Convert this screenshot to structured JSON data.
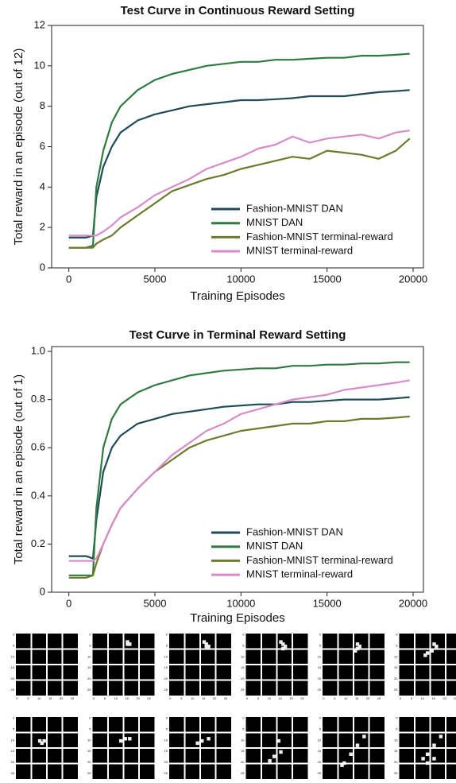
{
  "chart_data": [
    {
      "type": "line",
      "title": "Test Curve in Continuous Reward Setting",
      "xlabel": "Training Episodes",
      "ylabel": "Total reward in an episode (out of 12)",
      "x": [
        0,
        1000,
        1400,
        1600,
        2000,
        2500,
        3000,
        4000,
        5000,
        6000,
        7000,
        8000,
        9000,
        10000,
        11000,
        12000,
        13000,
        14000,
        15000,
        16000,
        17000,
        18000,
        19000,
        19800
      ],
      "series": [
        {
          "name": "Fashion-MNIST DAN",
          "color": "#1f4a57",
          "values": [
            1.5,
            1.5,
            1.6,
            3.5,
            5,
            6,
            6.7,
            7.3,
            7.6,
            7.8,
            8.0,
            8.1,
            8.2,
            8.3,
            8.3,
            8.35,
            8.4,
            8.5,
            8.5,
            8.5,
            8.6,
            8.7,
            8.75,
            8.8
          ]
        },
        {
          "name": "MNIST DAN",
          "color": "#2f7a40",
          "values": [
            1.0,
            1.0,
            1.1,
            4,
            5.8,
            7.2,
            8.0,
            8.8,
            9.3,
            9.6,
            9.8,
            10.0,
            10.1,
            10.2,
            10.2,
            10.3,
            10.3,
            10.35,
            10.4,
            10.4,
            10.5,
            10.5,
            10.55,
            10.6
          ]
        },
        {
          "name": "Fashion-MNIST terminal-reward",
          "color": "#6e7a2c",
          "values": [
            1.0,
            1.0,
            1.0,
            1.2,
            1.4,
            1.6,
            2.0,
            2.6,
            3.2,
            3.8,
            4.1,
            4.4,
            4.6,
            4.9,
            5.1,
            5.3,
            5.5,
            5.4,
            5.8,
            5.7,
            5.6,
            5.4,
            5.8,
            6.4
          ]
        },
        {
          "name": "MNIST terminal-reward",
          "color": "#d98bc9",
          "values": [
            1.6,
            1.6,
            1.6,
            1.6,
            1.8,
            2.1,
            2.5,
            3.0,
            3.6,
            4.0,
            4.4,
            4.9,
            5.2,
            5.5,
            5.9,
            6.1,
            6.5,
            6.2,
            6.4,
            6.5,
            6.6,
            6.4,
            6.7,
            6.8
          ]
        }
      ],
      "xlim": [
        -1000,
        20600
      ],
      "xticks": [
        0,
        5000,
        10000,
        15000,
        20000
      ],
      "ylim": [
        0,
        12
      ],
      "yticks": [
        0,
        2,
        4,
        6,
        8,
        10,
        12
      ],
      "legend": "lower right"
    },
    {
      "type": "line",
      "title": "Test Curve in Terminal Reward Setting",
      "xlabel": "Training Episodes",
      "ylabel": "Total reward in an episode (out of 1)",
      "x": [
        0,
        1000,
        1400,
        1600,
        2000,
        2500,
        3000,
        4000,
        5000,
        6000,
        7000,
        8000,
        9000,
        10000,
        11000,
        12000,
        13000,
        14000,
        15000,
        16000,
        17000,
        18000,
        19000,
        19800
      ],
      "series": [
        {
          "name": "Fashion-MNIST DAN",
          "color": "#1f4a57",
          "values": [
            0.15,
            0.15,
            0.14,
            0.3,
            0.5,
            0.6,
            0.65,
            0.7,
            0.72,
            0.74,
            0.75,
            0.76,
            0.77,
            0.775,
            0.78,
            0.78,
            0.79,
            0.79,
            0.795,
            0.8,
            0.8,
            0.8,
            0.805,
            0.81
          ]
        },
        {
          "name": "MNIST DAN",
          "color": "#2f7a40",
          "values": [
            0.07,
            0.07,
            0.07,
            0.35,
            0.6,
            0.72,
            0.78,
            0.83,
            0.86,
            0.88,
            0.9,
            0.91,
            0.92,
            0.925,
            0.93,
            0.93,
            0.94,
            0.94,
            0.945,
            0.945,
            0.95,
            0.95,
            0.955,
            0.955
          ]
        },
        {
          "name": "Fashion-MNIST terminal-reward",
          "color": "#6e7a2c",
          "values": [
            0.06,
            0.06,
            0.07,
            0.12,
            0.2,
            0.28,
            0.35,
            0.43,
            0.5,
            0.55,
            0.6,
            0.63,
            0.65,
            0.67,
            0.68,
            0.69,
            0.7,
            0.7,
            0.71,
            0.71,
            0.72,
            0.72,
            0.725,
            0.73
          ]
        },
        {
          "name": "MNIST terminal-reward",
          "color": "#d98bc9",
          "values": [
            0.13,
            0.13,
            0.13,
            0.14,
            0.2,
            0.28,
            0.35,
            0.43,
            0.5,
            0.57,
            0.62,
            0.67,
            0.7,
            0.74,
            0.76,
            0.78,
            0.8,
            0.81,
            0.82,
            0.84,
            0.85,
            0.86,
            0.87,
            0.88
          ]
        }
      ],
      "xlim": [
        -1000,
        20600
      ],
      "xticks": [
        0,
        5000,
        10000,
        15000,
        20000
      ],
      "ylim": [
        0,
        1.02
      ],
      "yticks": [
        0,
        0.2,
        0.4,
        0.6,
        0.8,
        {
          "value": 1,
          "label": "1.0"
        }
      ],
      "legend": "lower right"
    }
  ],
  "image_ticks": [
    0,
    5,
    10,
    15,
    20,
    25
  ]
}
